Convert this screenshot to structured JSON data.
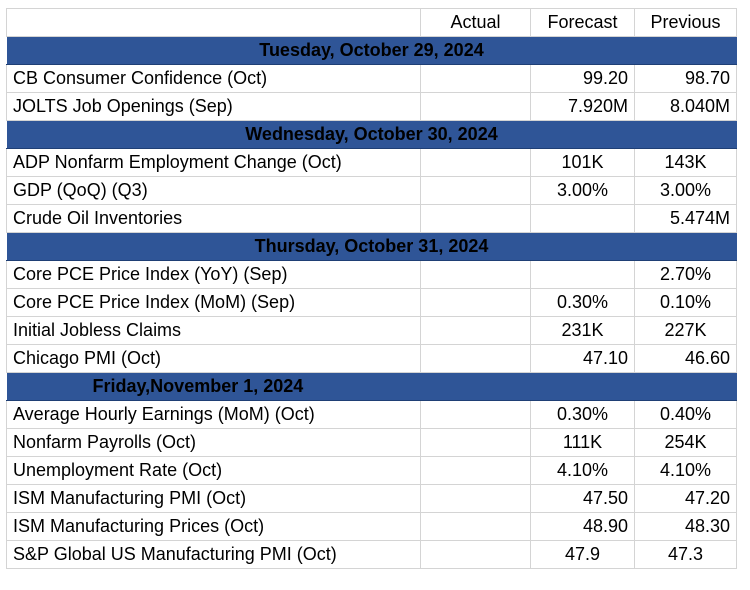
{
  "columns": {
    "actual": "Actual",
    "forecast": "Forecast",
    "previous": "Previous"
  },
  "header_color": "#2f5597",
  "sections": [
    {
      "date": "Tuesday, October 29, 2024",
      "rows": [
        {
          "name": "CB Consumer Confidence (Oct)",
          "actual": "",
          "forecast": "99.20",
          "previous": "98.70"
        },
        {
          "name": "JOLTS Job Openings (Sep)",
          "actual": "",
          "forecast": "7.920M",
          "previous": "8.040M"
        }
      ]
    },
    {
      "date": "Wednesday, October 30, 2024",
      "rows": [
        {
          "name": "ADP Nonfarm Employment Change (Oct)",
          "actual": "",
          "forecast": "101K",
          "previous": "143K"
        },
        {
          "name": "GDP (QoQ) (Q3)",
          "actual": "",
          "forecast": "3.00%",
          "previous": "3.00%"
        },
        {
          "name": "Crude Oil Inventories",
          "actual": "",
          "forecast": "",
          "previous": "5.474M"
        }
      ]
    },
    {
      "date": "Thursday, October 31, 2024",
      "rows": [
        {
          "name": "Core PCE Price Index (YoY) (Sep)",
          "actual": "",
          "forecast": "",
          "previous": "2.70%"
        },
        {
          "name": "Core PCE Price Index (MoM) (Sep)",
          "actual": "",
          "forecast": "0.30%",
          "previous": "0.10%"
        },
        {
          "name": "Initial Jobless Claims",
          "actual": "",
          "forecast": "231K",
          "previous": "227K"
        },
        {
          "name": "Chicago PMI (Oct)",
          "actual": "",
          "forecast": "47.10",
          "previous": "46.60"
        }
      ]
    },
    {
      "date": "Friday,November 1, 2024",
      "rows": [
        {
          "name": "Average Hourly Earnings (MoM) (Oct)",
          "actual": "",
          "forecast": "0.30%",
          "previous": "0.40%"
        },
        {
          "name": "Nonfarm Payrolls (Oct)",
          "actual": "",
          "forecast": "111K",
          "previous": "254K"
        },
        {
          "name": "Unemployment Rate (Oct)",
          "actual": "",
          "forecast": "4.10%",
          "previous": "4.10%"
        },
        {
          "name": "ISM Manufacturing PMI (Oct)",
          "actual": "",
          "forecast": "47.50",
          "previous": "47.20"
        },
        {
          "name": "ISM Manufacturing Prices (Oct)",
          "actual": "",
          "forecast": "48.90",
          "previous": "48.30"
        },
        {
          "name": "S&P Global US Manufacturing PMI (Oct)",
          "actual": "",
          "forecast": "47.9",
          "previous": "47.3"
        }
      ]
    }
  ]
}
